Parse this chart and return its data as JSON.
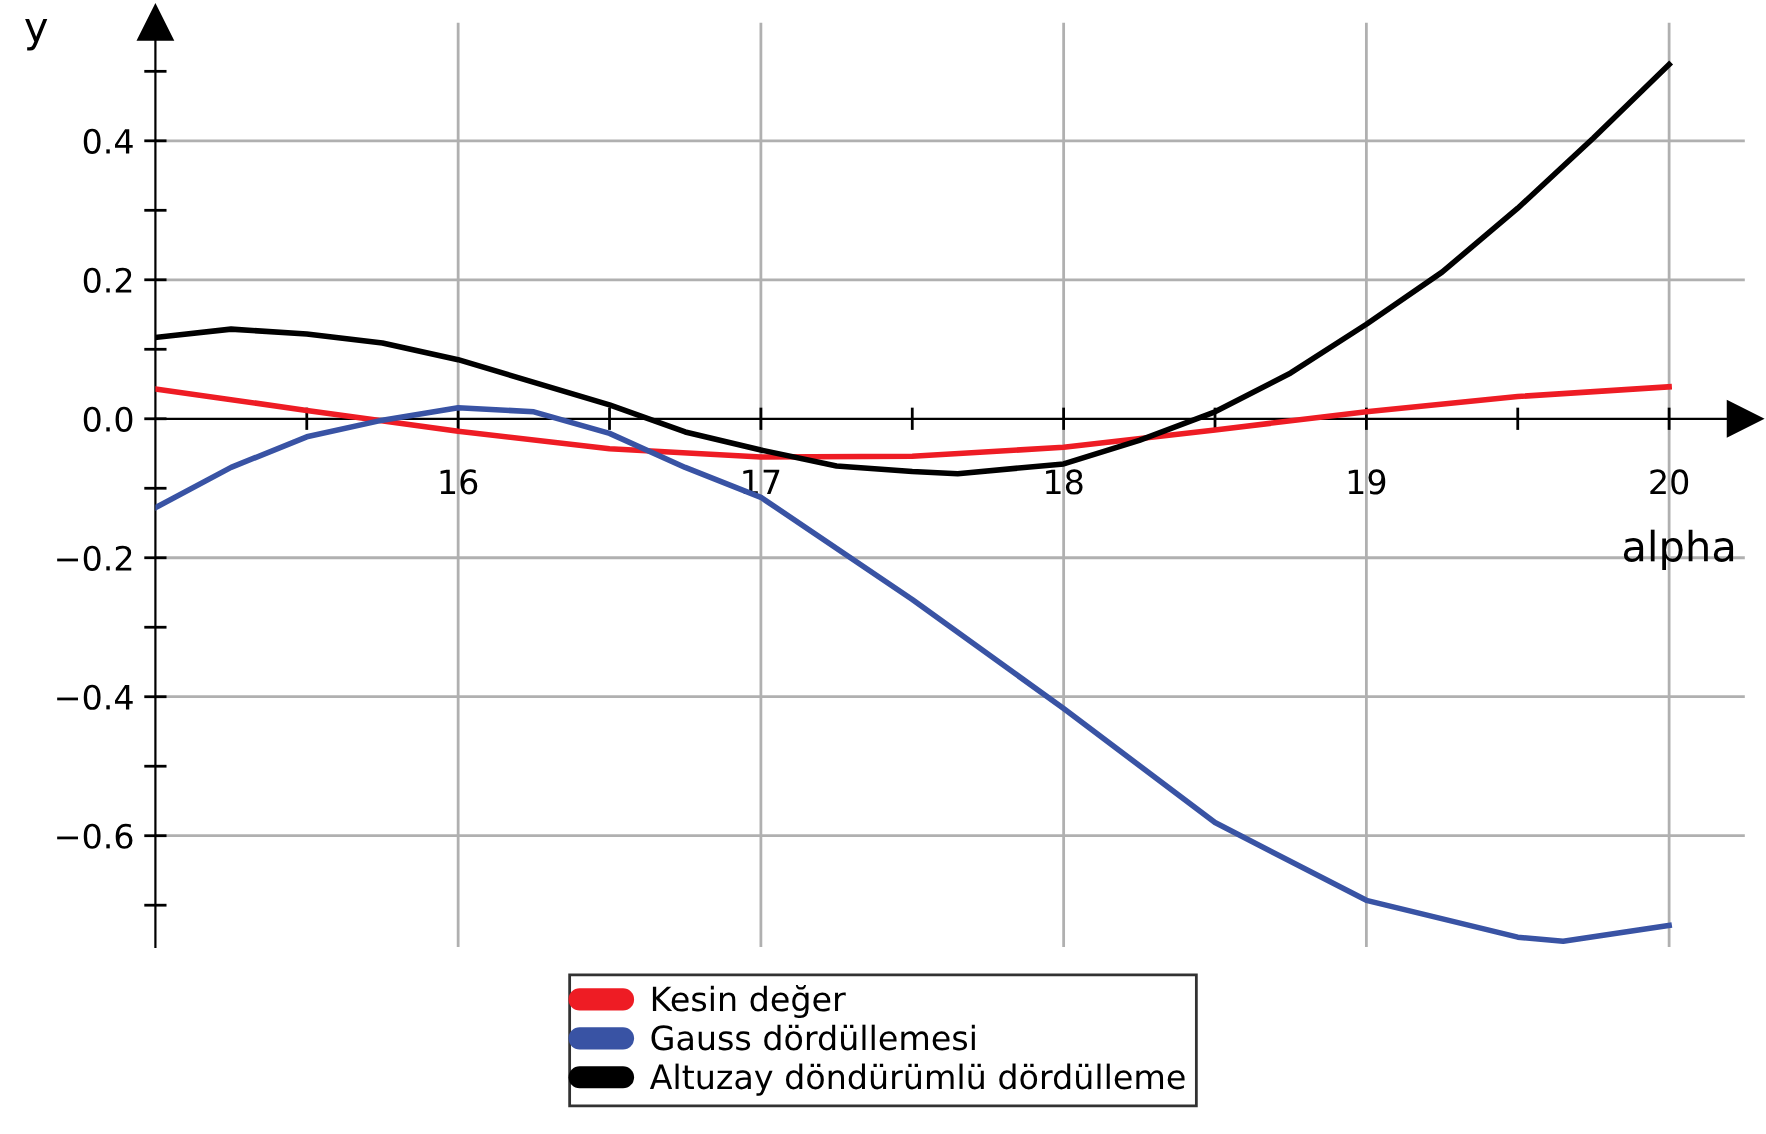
{
  "chart_data": {
    "type": "line",
    "xlabel": "alpha",
    "ylabel": "y",
    "xlim": [
      15,
      20.25
    ],
    "ylim": [
      -0.76,
      0.57
    ],
    "xticks": [
      {
        "value": 15.5,
        "label": null
      },
      16,
      {
        "value": 16.5,
        "label": null
      },
      17,
      {
        "value": 17.5,
        "label": null
      },
      18,
      {
        "value": 18.5,
        "label": null
      },
      19,
      {
        "value": 19.5,
        "label": null
      },
      20
    ],
    "yticks": [
      {
        "value": 0.5,
        "label": null
      },
      0.4,
      {
        "value": 0.3,
        "label": null
      },
      0.2,
      {
        "value": 0.1,
        "label": null
      },
      {
        "value": 0,
        "label": "0.0"
      },
      {
        "value": -0.1,
        "label": null
      },
      {
        "value": -0.2,
        "label": "−0.2"
      },
      {
        "value": -0.3,
        "label": null
      },
      {
        "value": -0.4,
        "label": "−0.4"
      },
      {
        "value": -0.5,
        "label": null
      },
      {
        "value": -0.6,
        "label": "−0.6"
      },
      {
        "value": -0.7,
        "label": null
      }
    ],
    "grid": true,
    "legend": "bottom",
    "marker": "none",
    "line_style": "solid",
    "series": [
      {
        "name": "Kesin değer",
        "color": "#ee1c24",
        "x": [
          15,
          15.5,
          16,
          16.5,
          17,
          17.5,
          18,
          18.5,
          19,
          19.5,
          20
        ],
        "values": [
          0.043,
          0.012,
          -0.018,
          -0.043,
          -0.055,
          -0.054,
          -0.041,
          -0.016,
          0.01,
          0.032,
          0.046
        ]
      },
      {
        "name": "Gauss dördüllemesi",
        "color": "#3953a4",
        "x": [
          15,
          15.25,
          15.5,
          15.75,
          16,
          16.25,
          16.5,
          16.75,
          17,
          17.5,
          18,
          18.5,
          19,
          19.5,
          19.65,
          20
        ],
        "values": [
          -0.128,
          -0.07,
          -0.026,
          -0.002,
          0.016,
          0.01,
          -0.021,
          -0.07,
          -0.113,
          -0.26,
          -0.417,
          -0.581,
          -0.693,
          -0.746,
          -0.752,
          -0.729
        ]
      },
      {
        "name": "Altuzay döndürümlü dördülleme",
        "color": "#000000",
        "x": [
          15,
          15.25,
          15.5,
          15.75,
          16,
          16.5,
          16.75,
          17,
          17.25,
          17.5,
          17.65,
          18,
          18.25,
          18.5,
          18.75,
          19,
          19.25,
          19.5,
          19.75,
          20
        ],
        "values": [
          0.117,
          0.129,
          0.122,
          0.109,
          0.085,
          0.02,
          -0.019,
          -0.045,
          -0.068,
          -0.076,
          -0.079,
          -0.065,
          -0.031,
          0.01,
          0.066,
          0.136,
          0.211,
          0.303,
          0.404,
          0.51
        ]
      }
    ]
  }
}
